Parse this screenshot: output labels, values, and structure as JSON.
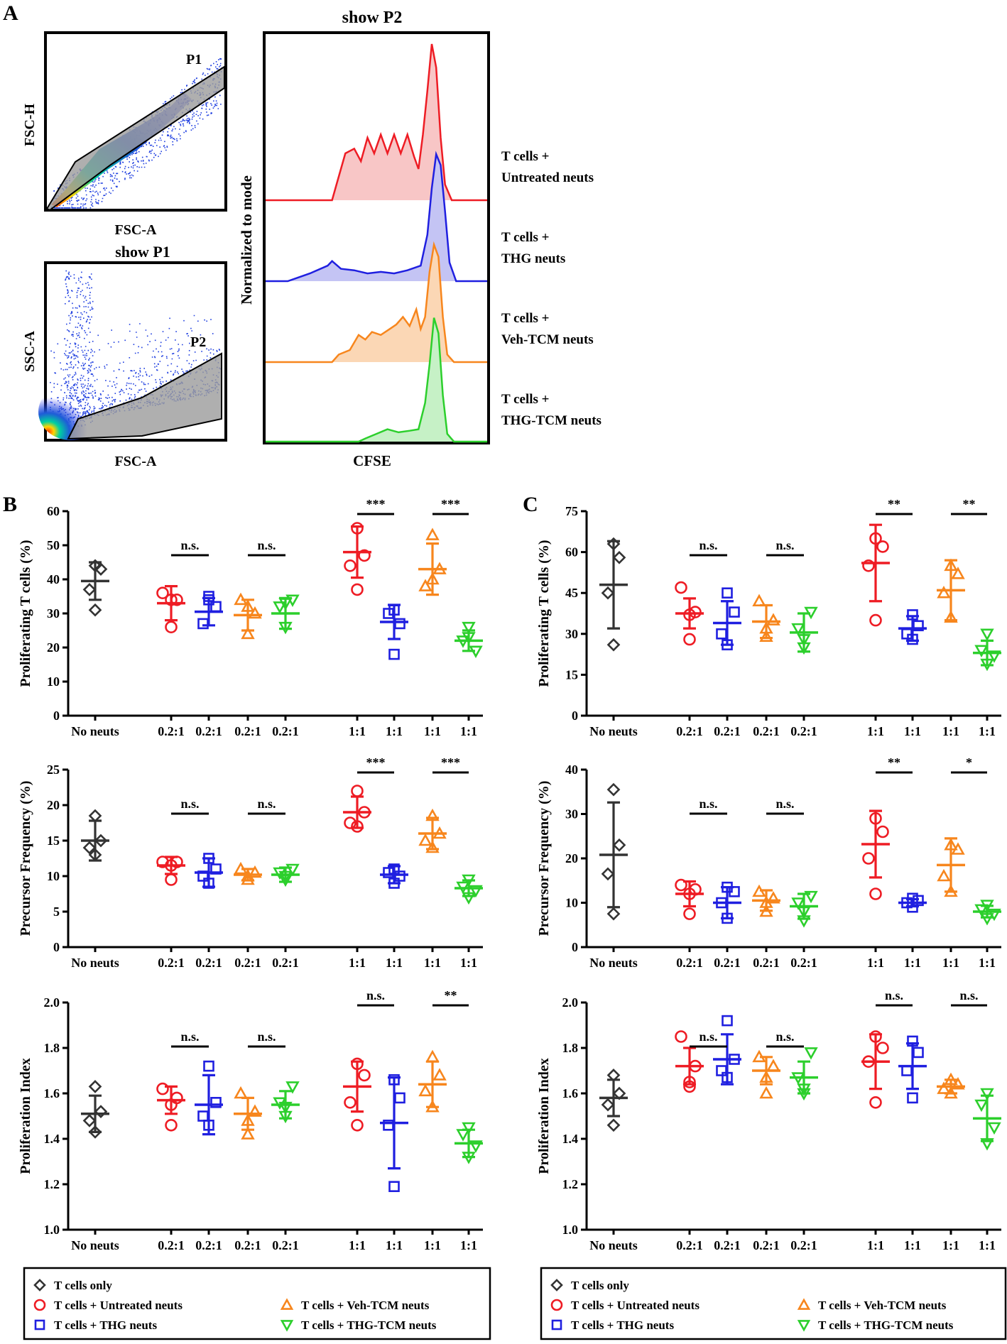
{
  "panel_labels": {
    "a": "A",
    "b": "B",
    "c": "C"
  },
  "flow": {
    "plot1": {
      "ylabel": "FSC-H",
      "xlabel": "FSC-A",
      "gate": "P1"
    },
    "plot2": {
      "title": "show P1",
      "ylabel": "SSC-A",
      "xlabel": "FSC-A",
      "gate": "P2"
    },
    "histogram": {
      "title": "show P2",
      "ylabel": "Normalized to mode",
      "xlabel": "CFSE",
      "tracks": [
        {
          "line1": "T cells +",
          "line2": "Untreated neuts",
          "color": "#ee1c24",
          "fill": "#f8c6c6"
        },
        {
          "line1": "T cells +",
          "line2": "THG neuts",
          "color": "#1f1fe0",
          "fill": "#c4c4f4"
        },
        {
          "line1": "T cells +",
          "line2": "Veh-TCM neuts",
          "color": "#f7861d",
          "fill": "#fbd7b5"
        },
        {
          "line1": "T cells +",
          "line2": "THG-TCM neuts",
          "color": "#2ccf2c",
          "fill": "#c6f1c6"
        }
      ]
    }
  },
  "groups": {
    "markers": [
      "diamond",
      "circle",
      "square",
      "triangle",
      "triangle-down",
      "circle",
      "square",
      "triangle",
      "triangle-down"
    ],
    "colors": [
      "#333333",
      "#ee1c24",
      "#1f1fe0",
      "#f7861d",
      "#2ccf2c",
      "#ee1c24",
      "#1f1fe0",
      "#f7861d",
      "#2ccf2c"
    ]
  },
  "chart_data": [
    {
      "type": "scatter",
      "panel": "B",
      "title": "",
      "ylabel": "Proliferating T cells (%)",
      "xlabel": "",
      "ylim": [
        0,
        60
      ],
      "yticks": [
        0,
        10,
        20,
        30,
        40,
        50,
        60
      ],
      "tick_labels": [
        "0",
        "10",
        "20",
        "30",
        "40",
        "50",
        "60"
      ],
      "categories": [
        "No neuts",
        "0.2:1",
        "0.2:1",
        "0.2:1",
        "0.2:1",
        "1:1",
        "1:1",
        "1:1",
        "1:1"
      ],
      "points": [
        [
          44,
          43,
          37,
          31
        ],
        [
          36,
          34,
          26,
          34
        ],
        [
          35,
          32,
          27,
          34
        ],
        [
          34,
          30,
          24,
          32
        ],
        [
          34,
          32,
          26,
          33
        ],
        [
          55,
          47,
          44,
          37
        ],
        [
          31,
          27,
          30,
          18
        ],
        [
          53,
          43,
          38,
          40
        ],
        [
          26,
          22,
          19,
          23
        ]
      ],
      "means": [
        39.5,
        33,
        30.5,
        29.5,
        30,
        48,
        27.5,
        43,
        22
      ],
      "sd": [
        5.5,
        5,
        4,
        4.5,
        4.5,
        7.5,
        5,
        7.5,
        3
      ],
      "sig": [
        {
          "from": 1,
          "to": 2,
          "label": "n.s."
        },
        {
          "from": 3,
          "to": 4,
          "label": "n.s."
        },
        {
          "from": 5,
          "to": 6,
          "label": "***"
        },
        {
          "from": 7,
          "to": 8,
          "label": "***"
        }
      ]
    },
    {
      "type": "scatter",
      "panel": "B",
      "title": "",
      "ylabel": "Precursor Frequency (%)",
      "xlabel": "",
      "ylim": [
        0,
        25
      ],
      "yticks": [
        0,
        5,
        10,
        15,
        20,
        25
      ],
      "tick_labels": [
        "0",
        "5",
        "10",
        "15",
        "20",
        "25"
      ],
      "categories": [
        "No neuts",
        "0.2:1",
        "0.2:1",
        "0.2:1",
        "0.2:1",
        "1:1",
        "1:1",
        "1:1",
        "1:1"
      ],
      "points": [
        [
          18.5,
          15,
          14,
          13
        ],
        [
          12,
          12,
          11.5,
          9.5
        ],
        [
          12.5,
          11,
          10,
          9
        ],
        [
          11,
          10.5,
          10,
          9.5
        ],
        [
          11,
          10.5,
          10,
          9.5
        ],
        [
          22,
          19,
          17.5,
          17
        ],
        [
          11,
          10,
          10.5,
          9
        ],
        [
          18.5,
          16,
          15,
          14
        ],
        [
          9.5,
          8.5,
          8,
          7
        ]
      ],
      "means": [
        15,
        11.5,
        10.5,
        10.2,
        10.2,
        19,
        10.2,
        16,
        8.3
      ],
      "sd": [
        2.8,
        1.2,
        2,
        0.8,
        1,
        2.2,
        1.2,
        2.2,
        1.1
      ],
      "sig": [
        {
          "from": 1,
          "to": 2,
          "label": "n.s."
        },
        {
          "from": 3,
          "to": 4,
          "label": "n.s."
        },
        {
          "from": 5,
          "to": 6,
          "label": "***"
        },
        {
          "from": 7,
          "to": 8,
          "label": "***"
        }
      ]
    },
    {
      "type": "scatter",
      "panel": "B",
      "title": "",
      "ylabel": "Proliferation Index",
      "xlabel": "",
      "ylim": [
        1.0,
        2.0
      ],
      "yticks": [
        1.0,
        1.2,
        1.4,
        1.6,
        1.8,
        2.0
      ],
      "tick_labels": [
        "1.0",
        "1.2",
        "1.4",
        "1.6",
        "1.8",
        "2.0"
      ],
      "categories": [
        "No neuts",
        "0.2:1",
        "0.2:1",
        "0.2:1",
        "0.2:1",
        "1:1",
        "1:1",
        "1:1",
        "1:1"
      ],
      "points": [
        [
          1.63,
          1.52,
          1.48,
          1.43
        ],
        [
          1.62,
          1.58,
          1.55,
          1.46
        ],
        [
          1.72,
          1.56,
          1.5,
          1.46
        ],
        [
          1.6,
          1.52,
          1.48,
          1.42
        ],
        [
          1.63,
          1.56,
          1.54,
          1.5
        ],
        [
          1.73,
          1.68,
          1.56,
          1.46
        ],
        [
          1.66,
          1.58,
          1.46,
          1.19
        ],
        [
          1.76,
          1.68,
          1.61,
          1.54
        ],
        [
          1.45,
          1.42,
          1.37,
          1.32
        ]
      ],
      "means": [
        1.51,
        1.57,
        1.55,
        1.51,
        1.55,
        1.63,
        1.47,
        1.64,
        1.38
      ],
      "sd": [
        0.08,
        0.06,
        0.13,
        0.07,
        0.06,
        0.11,
        0.2,
        0.1,
        0.06
      ],
      "sig": [
        {
          "from": 1,
          "to": 2,
          "label": "n.s."
        },
        {
          "from": 3,
          "to": 4,
          "label": "n.s."
        },
        {
          "from": 5,
          "to": 6,
          "label": "n.s."
        },
        {
          "from": 7,
          "to": 8,
          "label": "**"
        }
      ]
    },
    {
      "type": "scatter",
      "panel": "C",
      "title": "",
      "ylabel": "Proliferating T cells (%)",
      "xlabel": "",
      "ylim": [
        0,
        75
      ],
      "yticks": [
        0,
        15,
        30,
        45,
        60,
        75
      ],
      "tick_labels": [
        "0",
        "15",
        "30",
        "45",
        "60",
        "75"
      ],
      "categories": [
        "No neuts",
        "0.2:1",
        "0.2:1",
        "0.2:1",
        "0.2:1",
        "1:1",
        "1:1",
        "1:1",
        "1:1"
      ],
      "points": [
        [
          63,
          58,
          45,
          26
        ],
        [
          47,
          38,
          37,
          28
        ],
        [
          45,
          38,
          30,
          26
        ],
        [
          42,
          35,
          32,
          29
        ],
        [
          38,
          32,
          28,
          25
        ],
        [
          65,
          62,
          55,
          35
        ],
        [
          37,
          33,
          30,
          28
        ],
        [
          55,
          52,
          45,
          36
        ],
        [
          30,
          24,
          22,
          19
        ]
      ],
      "means": [
        48,
        37.5,
        34,
        34.5,
        30.5,
        56,
        32,
        46,
        23
      ],
      "sd": [
        16,
        5.5,
        8,
        6,
        7,
        14,
        4.5,
        11,
        4.5
      ],
      "sig": [
        {
          "from": 1,
          "to": 2,
          "label": "n.s."
        },
        {
          "from": 3,
          "to": 4,
          "label": "n.s."
        },
        {
          "from": 5,
          "to": 6,
          "label": "**"
        },
        {
          "from": 7,
          "to": 8,
          "label": "**"
        }
      ]
    },
    {
      "type": "scatter",
      "panel": "C",
      "title": "",
      "ylabel": "Precursor Frequency (%)",
      "xlabel": "",
      "ylim": [
        0,
        40
      ],
      "yticks": [
        0,
        10,
        20,
        30,
        40
      ],
      "tick_labels": [
        "0",
        "10",
        "20",
        "30",
        "40"
      ],
      "categories": [
        "No neuts",
        "0.2:1",
        "0.2:1",
        "0.2:1",
        "0.2:1",
        "1:1",
        "1:1",
        "1:1",
        "1:1"
      ],
      "points": [
        [
          35.5,
          23,
          16.5,
          7.5
        ],
        [
          14,
          13,
          12,
          7.5
        ],
        [
          13.5,
          12.5,
          10,
          6.5
        ],
        [
          12.5,
          11,
          10,
          8
        ],
        [
          11.5,
          10,
          8,
          6
        ],
        [
          29,
          26,
          20,
          12
        ],
        [
          11,
          10.5,
          10,
          9
        ],
        [
          23,
          22,
          16,
          12.5
        ],
        [
          9.5,
          8.5,
          7.5,
          6.5
        ]
      ],
      "means": [
        20.8,
        12,
        10,
        10.5,
        9.2,
        23.2,
        10,
        18.5,
        8
      ],
      "sd": [
        11.8,
        2.8,
        3.5,
        2.3,
        2.8,
        7.5,
        0.8,
        6,
        1.3
      ],
      "sig": [
        {
          "from": 1,
          "to": 2,
          "label": "n.s."
        },
        {
          "from": 3,
          "to": 4,
          "label": "n.s."
        },
        {
          "from": 5,
          "to": 6,
          "label": "**"
        },
        {
          "from": 7,
          "to": 8,
          "label": "*"
        }
      ]
    },
    {
      "type": "scatter",
      "panel": "C",
      "title": "",
      "ylabel": "Proliferation Index",
      "xlabel": "",
      "ylim": [
        1.0,
        2.0
      ],
      "yticks": [
        1.0,
        1.2,
        1.4,
        1.6,
        1.8,
        2.0
      ],
      "tick_labels": [
        "1.0",
        "1.2",
        "1.4",
        "1.6",
        "1.8",
        "2.0"
      ],
      "categories": [
        "No neuts",
        "0.2:1",
        "0.2:1",
        "0.2:1",
        "0.2:1",
        "1:1",
        "1:1",
        "1:1",
        "1:1"
      ],
      "points": [
        [
          1.68,
          1.6,
          1.55,
          1.46
        ],
        [
          1.85,
          1.72,
          1.65,
          1.63
        ],
        [
          1.92,
          1.75,
          1.7,
          1.67
        ],
        [
          1.76,
          1.72,
          1.67,
          1.6
        ],
        [
          1.78,
          1.67,
          1.62,
          1.6
        ],
        [
          1.85,
          1.8,
          1.74,
          1.56
        ],
        [
          1.83,
          1.78,
          1.7,
          1.58
        ],
        [
          1.66,
          1.64,
          1.62,
          1.6
        ],
        [
          1.6,
          1.55,
          1.45,
          1.38
        ]
      ],
      "means": [
        1.58,
        1.72,
        1.75,
        1.7,
        1.67,
        1.74,
        1.72,
        1.63,
        1.49
      ],
      "sd": [
        0.08,
        0.08,
        0.11,
        0.06,
        0.07,
        0.12,
        0.1,
        0.03,
        0.1
      ],
      "sig": [
        {
          "from": 1,
          "to": 2,
          "label": "n.s."
        },
        {
          "from": 3,
          "to": 4,
          "label": "n.s."
        },
        {
          "from": 5,
          "to": 6,
          "label": "n.s."
        },
        {
          "from": 7,
          "to": 8,
          "label": "n.s."
        }
      ]
    }
  ],
  "legend": {
    "items": [
      {
        "label": "T cells only",
        "marker": "diamond",
        "color": "#333333"
      },
      {
        "label": "T cells + Untreated neuts",
        "marker": "circle",
        "color": "#ee1c24"
      },
      {
        "label": "T cells + THG neuts",
        "marker": "square",
        "color": "#1f1fe0"
      },
      {
        "label": "T cells + Veh-TCM neuts",
        "marker": "triangle",
        "color": "#f7861d"
      },
      {
        "label": "T cells + THG-TCM neuts",
        "marker": "triangle-down",
        "color": "#2ccf2c"
      }
    ]
  }
}
